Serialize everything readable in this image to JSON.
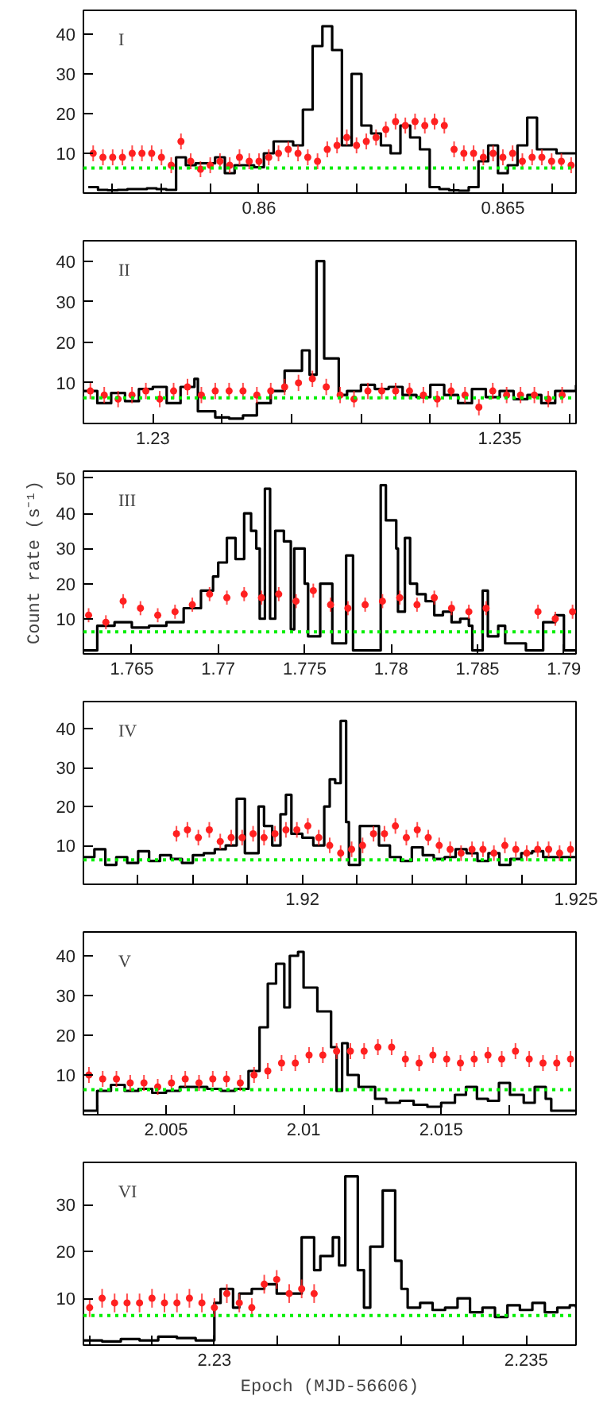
{
  "chart_data": [
    {
      "type": "step",
      "annotations": [
        "I"
      ],
      "xlim": [
        0.8564,
        0.8665
      ],
      "ylim": [
        0,
        46
      ],
      "grid": false,
      "xticks": [
        {
          "value": 0.857,
          "label": null
        },
        {
          "value": 0.858,
          "label": null
        },
        {
          "value": 0.859,
          "label": null
        },
        {
          "value": 0.86,
          "label": "0.86"
        },
        {
          "value": 0.861,
          "label": null
        },
        {
          "value": 0.862,
          "label": null
        },
        {
          "value": 0.863,
          "label": null
        },
        {
          "value": 0.864,
          "label": null
        },
        {
          "value": 0.865,
          "label": "0.865"
        },
        {
          "value": 0.866,
          "label": null
        }
      ],
      "yticks": [
        10,
        20,
        30,
        40
      ],
      "ref_lines": [
        {
          "axis": "y",
          "value": 6.3,
          "color": "#00ee00",
          "line_style": "dotted"
        }
      ],
      "series": [
        {
          "type": "scatter",
          "color": "#ff2020",
          "marker": "circle",
          "x": [
            0.8566,
            0.8568,
            0.857,
            0.8572,
            0.8574,
            0.8576,
            0.8578,
            0.858,
            0.8582,
            0.8584,
            0.8586,
            0.8588,
            0.859,
            0.8592,
            0.8594,
            0.8596,
            0.8598,
            0.86,
            0.8602,
            0.8604,
            0.8606,
            0.8608,
            0.861,
            0.8612,
            0.8614,
            0.8616,
            0.8618,
            0.862,
            0.8622,
            0.8624,
            0.8626,
            0.8628,
            0.863,
            0.8632,
            0.8634,
            0.8636,
            0.8638,
            0.864,
            0.8642,
            0.8644,
            0.8646,
            0.8648,
            0.865,
            0.8652,
            0.8654,
            0.8656,
            0.8658,
            0.866,
            0.8662,
            0.8664
          ],
          "values": [
            10,
            9,
            9,
            9,
            10,
            10,
            10,
            9,
            7,
            13,
            8,
            6,
            7,
            8,
            7,
            9,
            8,
            8,
            9,
            10,
            11,
            10,
            9,
            8,
            11,
            12,
            14,
            12,
            13,
            14,
            16,
            18,
            17,
            18,
            17,
            18,
            17,
            11,
            10,
            10,
            9,
            10,
            9,
            10,
            8,
            9,
            9,
            8,
            8,
            7
          ],
          "errors": [
            2,
            2,
            2,
            2,
            2,
            2,
            2,
            2,
            2,
            2,
            2,
            2,
            2,
            2,
            2,
            2,
            2,
            2,
            2,
            2,
            2,
            2,
            2,
            2,
            2,
            2,
            2,
            2,
            2,
            2,
            2,
            2,
            2,
            2,
            2,
            2,
            2,
            2,
            2,
            2,
            2,
            2,
            2,
            2,
            2,
            2,
            2,
            2,
            2,
            2
          ]
        },
        {
          "color": "#000000",
          "x": [
            0.8565,
            0.8567,
            0.8569,
            0.8571,
            0.8573,
            0.8575,
            0.8577,
            0.8579,
            0.8581,
            0.8583,
            0.8585,
            0.8587,
            0.8589,
            0.8591,
            0.8593,
            0.8595,
            0.8597,
            0.8599,
            0.8601,
            0.8603,
            0.8605,
            0.8607,
            0.8609,
            0.8611,
            0.8613,
            0.8615,
            0.8617,
            0.8619,
            0.8621,
            0.8623,
            0.8625,
            0.8627,
            0.8629,
            0.8631,
            0.8633,
            0.8635,
            0.8637,
            0.8639,
            0.8641,
            0.8643,
            0.8645,
            0.8647,
            0.8649,
            0.8651,
            0.8653,
            0.8655,
            0.8657,
            0.8659,
            0.8661,
            0.8663,
            0.8665
          ],
          "values": [
            1.5,
            0.8,
            0.7,
            0.8,
            1,
            1,
            1.2,
            1,
            0.8,
            9,
            7,
            7.5,
            7.5,
            9,
            5,
            7,
            7,
            6.5,
            10,
            13,
            13,
            12,
            21,
            37,
            42,
            36,
            12,
            30,
            17,
            15,
            12,
            10,
            17,
            14,
            11,
            1.5,
            1,
            0.7,
            0.6,
            1.5,
            8,
            12,
            5,
            7,
            12,
            19,
            11,
            11,
            10,
            10,
            10
          ]
        }
      ]
    },
    {
      "type": "step",
      "annotations": [
        "II"
      ],
      "xlim": [
        1.229,
        1.2361
      ],
      "ylim": [
        0,
        45
      ],
      "grid": false,
      "xticks": [
        {
          "value": 1.229,
          "label": null
        },
        {
          "value": 1.23,
          "label": "1.23"
        },
        {
          "value": 1.231,
          "label": null
        },
        {
          "value": 1.232,
          "label": null
        },
        {
          "value": 1.233,
          "label": null
        },
        {
          "value": 1.234,
          "label": null
        },
        {
          "value": 1.235,
          "label": "1.235"
        },
        {
          "value": 1.236,
          "label": null
        }
      ],
      "yticks": [
        10,
        20,
        30,
        40
      ],
      "ref_lines": [
        {
          "axis": "y",
          "value": 6.3,
          "color": "#00ee00",
          "line_style": "dotted"
        }
      ],
      "series": [
        {
          "type": "scatter",
          "color": "#ff2020",
          "marker": "circle",
          "x": [
            1.2291,
            1.2293,
            1.2295,
            1.2297,
            1.2299,
            1.2301,
            1.2303,
            1.2305,
            1.2307,
            1.2309,
            1.2311,
            1.2313,
            1.2315,
            1.2317,
            1.2319,
            1.2321,
            1.2323,
            1.2325,
            1.2327,
            1.2329,
            1.2331,
            1.2333,
            1.2335,
            1.2337,
            1.2339,
            1.2341,
            1.2343,
            1.2345,
            1.2347,
            1.2349,
            1.2351,
            1.2353,
            1.2355,
            1.2357,
            1.2359
          ],
          "values": [
            8,
            7,
            6,
            7,
            8,
            6,
            8,
            9,
            7,
            8,
            8,
            8,
            7,
            8,
            9,
            10,
            11,
            9,
            7,
            6,
            8,
            8,
            8,
            8,
            7,
            6,
            8,
            7,
            4,
            8,
            7,
            7,
            7,
            6,
            7
          ],
          "errors": [
            2,
            2,
            2,
            2,
            2,
            2,
            2,
            2,
            2,
            2,
            2,
            2,
            2,
            2,
            2,
            2,
            2,
            2,
            2,
            2,
            2,
            2,
            2,
            2,
            2,
            2,
            2,
            2,
            2,
            2,
            2,
            2,
            2,
            2,
            2
          ]
        },
        {
          "color": "#000000",
          "x": [
            1.229,
            1.2292,
            1.2294,
            1.2296,
            1.2298,
            1.23,
            1.2302,
            1.2304,
            1.2306,
            1.23065,
            1.2309,
            1.2311,
            1.2313,
            1.2315,
            1.2317,
            1.2319,
            1.23215,
            1.23226,
            1.23236,
            1.23247,
            1.23268,
            1.2328,
            1.233,
            1.2332,
            1.2334,
            1.2336,
            1.2338,
            1.234,
            1.2342,
            1.2344,
            1.2346,
            1.2348,
            1.235,
            1.2352,
            1.2354,
            1.2356,
            1.2358,
            1.2361
          ],
          "values": [
            8,
            5,
            7.5,
            5.5,
            8.5,
            9,
            5,
            9,
            11,
            3,
            1.5,
            1.2,
            2,
            5,
            8,
            13,
            18,
            12,
            40,
            16,
            7,
            8,
            9.5,
            8.5,
            9,
            7,
            6.5,
            9.5,
            7,
            5,
            8.5,
            6.5,
            8,
            6,
            7,
            5,
            8,
            9.5
          ]
        }
      ]
    },
    {
      "type": "step",
      "annotations": [
        "III"
      ],
      "ylabel": "Count rate (s⁻¹)",
      "xlim": [
        1.7622,
        1.7907
      ],
      "ylim": [
        0,
        52
      ],
      "grid": false,
      "xticks": [
        1.765,
        1.77,
        1.775,
        1.78,
        1.785,
        1.79
      ],
      "yticks": [
        10,
        20,
        30,
        40,
        50
      ],
      "ref_lines": [
        {
          "axis": "y",
          "value": 6.3,
          "color": "#00ee00",
          "line_style": "dotted"
        }
      ],
      "series": [
        {
          "type": "scatter",
          "color": "#ff2020",
          "marker": "circle",
          "x": [
            1.7625,
            1.7635,
            1.7645,
            1.7655,
            1.7665,
            1.7675,
            1.7685,
            1.7695,
            1.7705,
            1.7715,
            1.7725,
            1.7735,
            1.7745,
            1.7755,
            1.7765,
            1.7775,
            1.7785,
            1.7795,
            1.7805,
            1.7815,
            1.7825,
            1.7835,
            1.7845,
            1.7855,
            1.7865,
            1.7875,
            1.7885,
            1.7895,
            1.7905
          ],
          "values": [
            11,
            9,
            15,
            13,
            11,
            12,
            14,
            17,
            16,
            17,
            16,
            17,
            15,
            18,
            14,
            13,
            14,
            15,
            16,
            14,
            16,
            13,
            12,
            13,
            null,
            null,
            12,
            10,
            12
          ],
          "errors": [
            2,
            2,
            2,
            2,
            2,
            2,
            2,
            2,
            2,
            2,
            2,
            2,
            2,
            2,
            2,
            2,
            2,
            2,
            2,
            2,
            2,
            2,
            2,
            2,
            null,
            null,
            2,
            2,
            2
          ]
        },
        {
          "color": "#000000",
          "x": [
            1.7622,
            1.763,
            1.764,
            1.765,
            1.766,
            1.767,
            1.768,
            1.769,
            1.7697,
            1.77,
            1.7705,
            1.771,
            1.7715,
            1.7719,
            1.7722,
            1.7724,
            1.7727,
            1.773,
            1.7733,
            1.7738,
            1.7742,
            1.7744,
            1.775,
            1.7752,
            1.7759,
            1.7766,
            1.7774,
            1.7778,
            1.7794,
            1.7797,
            1.7803,
            1.7804,
            1.7808,
            1.7811,
            1.7815,
            1.782,
            1.7825,
            1.783,
            1.7835,
            1.784,
            1.7845,
            1.7847,
            1.7853,
            1.7856,
            1.7862,
            1.7866,
            1.7878,
            1.7888,
            1.7895,
            1.79,
            1.7907
          ],
          "values": [
            1,
            8,
            9,
            7.5,
            8,
            9,
            13,
            18,
            22,
            26,
            33,
            27,
            40,
            35,
            30,
            10,
            47,
            10,
            35,
            32,
            7,
            30,
            20,
            5,
            20,
            3,
            28,
            1,
            48,
            38,
            30,
            12,
            33,
            20,
            17,
            15,
            11,
            12,
            9,
            10,
            8,
            1,
            18,
            5,
            8,
            3,
            1,
            9,
            11,
            1,
            1
          ]
        }
      ]
    },
    {
      "type": "step",
      "annotations": [
        "IV"
      ],
      "xlim": [
        1.916,
        1.925
      ],
      "ylim": [
        0,
        47
      ],
      "grid": false,
      "xticks": [
        {
          "value": 1.917,
          "label": null
        },
        {
          "value": 1.918,
          "label": null
        },
        {
          "value": 1.919,
          "label": null
        },
        {
          "value": 1.92,
          "label": "1.92"
        },
        {
          "value": 1.921,
          "label": null
        },
        {
          "value": 1.922,
          "label": null
        },
        {
          "value": 1.923,
          "label": null
        },
        {
          "value": 1.924,
          "label": null
        },
        {
          "value": 1.925,
          "label": "1.925"
        }
      ],
      "yticks": [
        10,
        20,
        30,
        40
      ],
      "ref_lines": [
        {
          "axis": "y",
          "value": 6.3,
          "color": "#00ee00",
          "line_style": "dotted"
        }
      ],
      "series": [
        {
          "type": "scatter",
          "color": "#ff2020",
          "marker": "circle",
          "x": [
            1.9177,
            1.9179,
            1.9181,
            1.9183,
            1.9185,
            1.9187,
            1.9189,
            1.9191,
            1.9193,
            1.9195,
            1.9197,
            1.9199,
            1.9201,
            1.9203,
            1.9205,
            1.9207,
            1.9209,
            1.9211,
            1.9213,
            1.9215,
            1.9217,
            1.9219,
            1.9221,
            1.9223,
            1.9225,
            1.9227,
            1.9229,
            1.9231,
            1.9233,
            1.9235,
            1.9237,
            1.9239,
            1.9241,
            1.9243,
            1.9245,
            1.9247,
            1.9249
          ],
          "values": [
            13,
            14,
            12,
            14,
            11,
            12,
            12,
            13,
            12,
            13,
            14,
            14,
            15,
            12,
            10,
            8,
            9,
            10,
            13,
            13,
            15,
            12,
            14,
            12,
            10,
            9,
            8,
            9,
            9,
            8,
            10,
            9,
            8,
            9,
            9,
            8,
            9
          ],
          "errors": [
            2,
            2,
            2,
            2,
            2,
            2,
            2,
            2,
            2,
            2,
            2,
            2,
            2,
            2,
            2,
            2,
            2,
            2,
            2,
            2,
            2,
            2,
            2,
            2,
            2,
            2,
            2,
            2,
            2,
            2,
            2,
            2,
            2,
            2,
            2,
            2,
            2
          ]
        },
        {
          "color": "#000000",
          "x": [
            1.916,
            1.9162,
            1.9164,
            1.9166,
            1.9168,
            1.917,
            1.9172,
            1.9174,
            1.9176,
            1.9178,
            1.918,
            1.9182,
            1.9184,
            1.9186,
            1.9188,
            1.91895,
            1.9192,
            1.9193,
            1.91945,
            1.9196,
            1.9197,
            1.9198,
            1.92,
            1.9202,
            1.9204,
            1.9205,
            1.9206,
            1.9207,
            1.9208,
            1.92085,
            1.92105,
            1.9214,
            1.9216,
            1.9218,
            1.922,
            1.9222,
            1.9224,
            1.9226,
            1.9228,
            1.923,
            1.9232,
            1.9234,
            1.9236,
            1.9238,
            1.924,
            1.9242,
            1.9244,
            1.925
          ],
          "values": [
            7,
            9,
            5,
            7,
            5.5,
            8.5,
            6,
            7.5,
            6.5,
            5.5,
            7.5,
            8,
            9,
            10,
            22,
            8,
            20,
            15,
            10,
            18,
            23,
            13,
            12,
            10,
            20,
            27,
            26,
            42,
            16,
            5,
            15,
            10,
            7,
            6,
            9.5,
            7.5,
            6.5,
            7,
            9,
            8,
            6,
            8,
            5,
            6.5,
            8,
            8.5,
            7,
            7
          ]
        }
      ]
    },
    {
      "type": "step",
      "annotations": [
        "V"
      ],
      "xlim": [
        2.002,
        2.0199
      ],
      "ylim": [
        0,
        46
      ],
      "grid": false,
      "xticks": [
        {
          "value": 2.0025,
          "label": null
        },
        {
          "value": 2.005,
          "label": "2.005"
        },
        {
          "value": 2.0075,
          "label": null
        },
        {
          "value": 2.01,
          "label": "2.01"
        },
        {
          "value": 2.0125,
          "label": null
        },
        {
          "value": 2.015,
          "label": "2.015"
        },
        {
          "value": 2.0175,
          "label": null
        }
      ],
      "yticks": [
        10,
        20,
        30,
        40
      ],
      "ref_lines": [
        {
          "axis": "y",
          "value": 6.3,
          "color": "#00ee00",
          "line_style": "dotted"
        }
      ],
      "series": [
        {
          "type": "scatter",
          "color": "#ff2020",
          "marker": "circle",
          "x": [
            2.0022,
            2.0027,
            2.0032,
            2.0037,
            2.0042,
            2.0047,
            2.0052,
            2.0057,
            2.0062,
            2.0067,
            2.0072,
            2.0077,
            2.0082,
            2.0087,
            2.0092,
            2.0097,
            2.0102,
            2.0107,
            2.0112,
            2.0117,
            2.0122,
            2.0127,
            2.0132,
            2.0137,
            2.0142,
            2.0147,
            2.0152,
            2.0157,
            2.0162,
            2.0167,
            2.0172,
            2.0177,
            2.0182,
            2.0187,
            2.0192,
            2.0197
          ],
          "values": [
            10,
            9,
            9,
            8,
            8,
            7,
            8,
            9,
            8,
            9,
            9,
            8,
            10,
            11,
            13,
            13,
            15,
            15,
            16,
            16,
            16,
            17,
            17,
            14,
            13,
            15,
            14,
            13,
            14,
            15,
            14,
            16,
            14,
            13,
            13,
            14
          ],
          "errors": [
            2,
            2,
            2,
            2,
            2,
            2,
            2,
            2,
            2,
            2,
            2,
            2,
            2,
            2,
            2,
            2,
            2,
            2,
            2,
            2,
            2,
            2,
            2,
            2,
            2,
            2,
            2,
            2,
            2,
            2,
            2,
            2,
            2,
            2,
            2,
            2
          ]
        },
        {
          "color": "#000000",
          "x": [
            2.002,
            2.0025,
            2.003,
            2.0035,
            2.004,
            2.0045,
            2.005,
            2.0055,
            2.006,
            2.0065,
            2.007,
            2.0075,
            2.008,
            2.0084,
            2.0087,
            2.009,
            2.0093,
            2.0095,
            2.0098,
            2.01,
            2.0105,
            2.011,
            2.0112,
            2.0114,
            2.0116,
            2.012,
            2.0126,
            2.013,
            2.0135,
            2.014,
            2.0145,
            2.015,
            2.0155,
            2.0159,
            2.0163,
            2.0167,
            2.0171,
            2.0175,
            2.018,
            2.0184,
            2.0188,
            2.019,
            2.0199
          ],
          "values": [
            1,
            6,
            7.5,
            6,
            6.5,
            5.5,
            6,
            7,
            7,
            6.5,
            6,
            6.5,
            11,
            22,
            33,
            38,
            27,
            40,
            41,
            32,
            26,
            17,
            6,
            18,
            10,
            7,
            4,
            3,
            3.5,
            2.5,
            2,
            3,
            5,
            7,
            4,
            3.5,
            8,
            5,
            3,
            7,
            4,
            1,
            1
          ]
        }
      ]
    },
    {
      "type": "step",
      "annotations": [
        "VI"
      ],
      "xlabel": "Epoch (MJD-56606)",
      "xlim": [
        2.2279,
        2.2358
      ],
      "ylim": [
        0,
        39
      ],
      "grid": false,
      "xticks": [
        {
          "value": 2.228,
          "label": null
        },
        {
          "value": 2.229,
          "label": null
        },
        {
          "value": 2.23,
          "label": "2.23"
        },
        {
          "value": 2.231,
          "label": null
        },
        {
          "value": 2.232,
          "label": null
        },
        {
          "value": 2.233,
          "label": null
        },
        {
          "value": 2.234,
          "label": null
        },
        {
          "value": 2.235,
          "label": "2.235"
        }
      ],
      "yticks": [
        10,
        20,
        30
      ],
      "ref_lines": [
        {
          "axis": "y",
          "value": 6.3,
          "color": "#00ee00",
          "line_style": "dotted"
        }
      ],
      "series": [
        {
          "type": "scatter",
          "color": "#ff2020",
          "marker": "circle",
          "x": [
            2.228,
            2.2282,
            2.2284,
            2.2286,
            2.2288,
            2.229,
            2.2292,
            2.2294,
            2.2296,
            2.2298,
            2.23,
            2.2302,
            2.2304,
            2.2306,
            2.2308,
            2.231,
            2.2312,
            2.2314,
            2.2316
          ],
          "values": [
            8,
            10,
            9,
            9,
            9,
            10,
            9,
            9,
            10,
            9,
            8,
            11,
            9,
            8,
            13,
            14,
            11,
            12,
            11
          ],
          "errors": [
            2,
            2,
            2,
            2,
            2,
            2,
            2,
            2,
            2,
            2,
            2,
            2,
            2,
            2,
            2,
            2,
            2,
            2,
            2
          ]
        },
        {
          "color": "#000000",
          "x": [
            2.2279,
            2.2282,
            2.2285,
            2.2288,
            2.2291,
            2.2294,
            2.2297,
            2.23,
            2.2301,
            2.2303,
            2.2304,
            2.2306,
            2.2308,
            2.231,
            2.2314,
            2.2316,
            2.2317,
            2.2319,
            2.232,
            2.2321,
            2.2323,
            2.2324,
            2.2325,
            2.2327,
            2.2329,
            2.233,
            2.2331,
            2.2333,
            2.2335,
            2.2337,
            2.2339,
            2.2341,
            2.2343,
            2.2345,
            2.2347,
            2.2349,
            2.2351,
            2.2353,
            2.2355,
            2.2357,
            2.2358
          ],
          "values": [
            1,
            0.8,
            1.3,
            1,
            1.8,
            1.5,
            1,
            9,
            12,
            8,
            11,
            12,
            13,
            11,
            23,
            16,
            19,
            23,
            17,
            36,
            16,
            8,
            21,
            33,
            18,
            12,
            8,
            9,
            7.5,
            8,
            10,
            7,
            8,
            6,
            8.5,
            7.5,
            9,
            7,
            8,
            8.5,
            8
          ]
        }
      ]
    }
  ]
}
